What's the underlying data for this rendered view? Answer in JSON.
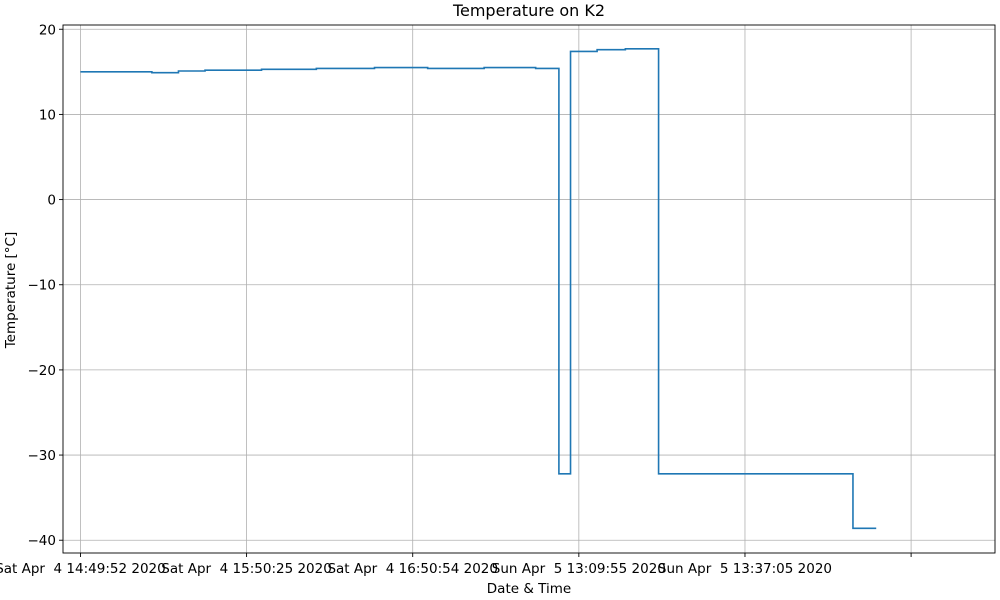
{
  "chart_data": {
    "type": "line",
    "title": "Temperature on K2",
    "xlabel": "Date & Time",
    "ylabel": "Temperature [°C]",
    "ylim": [
      -41.5,
      20.5
    ],
    "yticks": [
      20,
      10,
      0,
      -10,
      -20,
      -30,
      -40
    ],
    "ytick_labels": [
      "20",
      "10",
      "0",
      "−10",
      "−20",
      "−30",
      "−40"
    ],
    "xlim": [
      -0.105,
      5.505
    ],
    "xticks": [
      0,
      1,
      2,
      3,
      4,
      5
    ],
    "xtick_labels": [
      "Sat Apr  4 14:49:52 2020",
      "Sat Apr  4 15:50:25 2020",
      "Sat Apr  4 16:50:54 2020",
      "Sun Apr  5 13:09:55 2020",
      "Sun Apr  5 13:37:05 2020",
      ""
    ],
    "grid": true,
    "series": [
      {
        "color": "#1f77b4",
        "x": [
          0.0,
          0.43,
          0.43,
          0.59,
          0.59,
          0.75,
          0.75,
          1.09,
          1.09,
          1.42,
          1.42,
          1.77,
          1.77,
          2.09,
          2.09,
          2.43,
          2.43,
          2.74,
          2.74,
          2.88,
          2.88,
          2.95,
          2.95,
          3.03,
          3.03,
          3.11,
          3.11,
          3.28,
          3.28,
          3.45,
          3.45,
          3.48,
          3.48,
          3.53,
          3.53,
          4.65,
          4.65,
          4.7,
          4.7,
          4.79
        ],
        "y": [
          15.0,
          15.0,
          14.9,
          14.9,
          15.1,
          15.1,
          15.2,
          15.2,
          15.3,
          15.3,
          15.4,
          15.4,
          15.5,
          15.5,
          15.4,
          15.4,
          15.5,
          15.5,
          15.4,
          15.4,
          -32.2,
          -32.2,
          17.4,
          17.4,
          17.4,
          17.4,
          17.6,
          17.6,
          17.7,
          17.7,
          17.7,
          17.7,
          -32.2,
          -32.2,
          -32.2,
          -32.2,
          -38.6,
          -38.6,
          -38.6,
          -38.6
        ]
      }
    ]
  }
}
